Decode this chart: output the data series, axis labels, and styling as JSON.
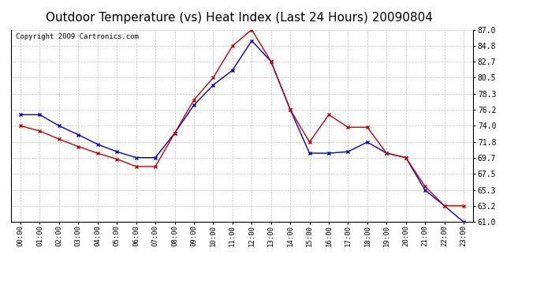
{
  "title": "Outdoor Temperature (vs) Heat Index (Last 24 Hours) 20090804",
  "copyright": "Copyright 2009 Cartronics.com",
  "x_labels": [
    "00:00",
    "01:00",
    "02:00",
    "03:00",
    "04:00",
    "05:00",
    "06:00",
    "07:00",
    "08:00",
    "09:00",
    "10:00",
    "11:00",
    "12:00",
    "13:00",
    "14:00",
    "15:00",
    "16:00",
    "17:00",
    "18:00",
    "19:00",
    "20:00",
    "21:00",
    "22:00",
    "23:00"
  ],
  "blue_data": [
    75.5,
    75.5,
    74.0,
    72.8,
    71.5,
    70.5,
    69.7,
    69.7,
    73.0,
    76.8,
    79.5,
    81.5,
    85.5,
    82.7,
    76.2,
    70.3,
    70.3,
    70.5,
    71.8,
    70.3,
    69.7,
    65.3,
    63.2,
    61.0
  ],
  "red_data": [
    74.0,
    73.3,
    72.2,
    71.2,
    70.3,
    69.5,
    68.5,
    68.5,
    73.0,
    77.5,
    80.5,
    84.8,
    87.0,
    82.7,
    76.2,
    71.8,
    75.5,
    73.8,
    73.8,
    70.3,
    69.7,
    65.8,
    63.2,
    63.2
  ],
  "ylim": [
    61.0,
    87.0
  ],
  "yticks": [
    61.0,
    63.2,
    65.3,
    67.5,
    69.7,
    71.8,
    74.0,
    76.2,
    78.3,
    80.5,
    82.7,
    84.8,
    87.0
  ],
  "blue_color": "#0000cc",
  "red_color": "#cc0000",
  "bg_color": "#ffffff",
  "grid_color": "#c0c0c0",
  "title_fontsize": 11,
  "copyright_fontsize": 6.5
}
